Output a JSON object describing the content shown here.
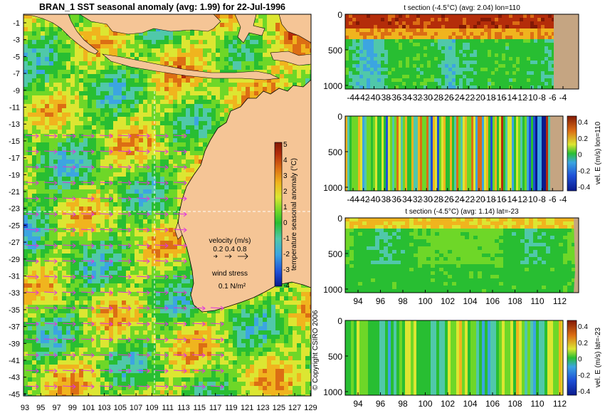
{
  "colors": {
    "land": "#f5c596",
    "land_brown": "#c5a582",
    "grid": "#ffffff",
    "arrow": "#e032e0",
    "ramp": [
      "#0a1a8c",
      "#1e50d7",
      "#3ca5e1",
      "#50c8aa",
      "#28be32",
      "#6ed728",
      "#dce632",
      "#f0b41e",
      "#dc6e14",
      "#b42d0a",
      "#821905"
    ]
  },
  "map": {
    "title": "BRAN_1 SST seasonal anomaly (avg: 1.99) for 22-Jul-1996",
    "lat_ticks": [
      "-1",
      "-3",
      "-5",
      "-7",
      "-9",
      "-11",
      "-13",
      "-15",
      "-17",
      "-19",
      "-21",
      "-23",
      "-25",
      "-27",
      "-29",
      "-31",
      "-33",
      "-35",
      "-37",
      "-39",
      "-41",
      "-43",
      "-45"
    ],
    "lon_ticks": [
      "93",
      "95",
      "97",
      "99",
      "101",
      "103",
      "105",
      "107",
      "109",
      "111",
      "113",
      "115",
      "117",
      "119",
      "121",
      "123",
      "125",
      "127",
      "129"
    ],
    "colorbar": {
      "label": "temperature seasonal anomaly (°C)",
      "ticks": [
        "5",
        "4",
        "3",
        "2",
        "1",
        "0",
        "-1",
        "-2",
        "-3",
        "-4"
      ]
    },
    "velocity_legend": {
      "title": "velocity (m/s)",
      "values": "0.2 0.4 0.8"
    },
    "wind_legend": {
      "title": "wind stress",
      "value": "0.1 N/m²"
    },
    "copyright": "© Copyright CSIRO 2006"
  },
  "panels": {
    "p1": {
      "title": "t section (-4.5°C) (avg: 2.04) lon=110"
    },
    "p2": {
      "cbar_label": "vel. E (m/s) lon=110",
      "cbar_ticks": [
        "0.4",
        "0.2",
        "0",
        "-0.2",
        "-0.4"
      ]
    },
    "p3": {
      "title": "t section (-4.5°C) (avg: 1.14) lat=-23"
    },
    "p4": {
      "cbar_label": "vel. E (m/s) lat=-23",
      "cbar_ticks": [
        "0.4",
        "0.2",
        "0",
        "-0.2",
        "-0.4"
      ]
    },
    "depth_ticks": [
      "0",
      "500",
      "1000"
    ],
    "lat_ticks": [
      "-44",
      "-42",
      "-40",
      "-38",
      "-36",
      "-34",
      "-32",
      "-30",
      "-28",
      "-26",
      "-24",
      "-22",
      "-20",
      "-18",
      "-16",
      "-14",
      "-12",
      "-10",
      "-8",
      "-6",
      "-4"
    ],
    "lon_ticks": [
      "94",
      "96",
      "98",
      "100",
      "102",
      "104",
      "106",
      "108",
      "110",
      "112"
    ]
  },
  "chart_data": [
    {
      "type": "heatmap",
      "title": "BRAN_1 SST seasonal anomaly (avg: 1.99) for 22-Jul-1996",
      "xlabel": "",
      "ylabel": "",
      "xlim": [
        93,
        130
      ],
      "ylim": [
        -45,
        0
      ],
      "colorbar_label": "temperature seasonal anomaly (°C)",
      "colorbar_range": [
        -4,
        5
      ],
      "grid_lines": {
        "lat": -23,
        "lon": 110
      }
    },
    {
      "type": "heatmap",
      "title": "t section (-4.5°C) (avg: 2.04) lon=110",
      "xlim": [
        -45,
        -3
      ],
      "ylim": [
        1050,
        0
      ],
      "y_ticks": [
        0,
        500,
        1000
      ]
    },
    {
      "type": "heatmap",
      "title": "",
      "xlim": [
        -45,
        -3
      ],
      "ylim": [
        1050,
        0
      ],
      "colorbar_label": "vel. E (m/s) lon=110",
      "colorbar_range": [
        -0.4,
        0.4
      ]
    },
    {
      "type": "heatmap",
      "title": "t section (-4.5°C) (avg: 1.14) lat=-23",
      "xlim": [
        93,
        114
      ],
      "ylim": [
        1050,
        0
      ],
      "y_ticks": [
        0,
        500,
        1000
      ]
    },
    {
      "type": "heatmap",
      "title": "",
      "xlim": [
        93,
        114
      ],
      "ylim": [
        1050,
        0
      ],
      "colorbar_label": "vel. E (m/s) lat=-23",
      "colorbar_range": [
        -0.4,
        0.4
      ]
    }
  ]
}
